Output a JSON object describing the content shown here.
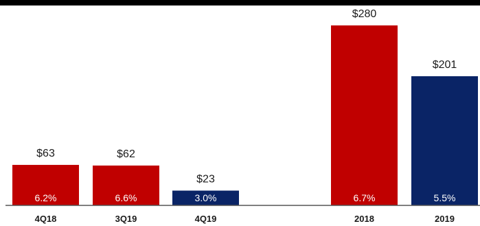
{
  "colors": {
    "header_band": "#000000",
    "red": "#c00000",
    "navy": "#0a2466",
    "baseline": "#555555",
    "text": "#1a1a1a",
    "bar_text": "#ffffff"
  },
  "chart_data": {
    "type": "bar",
    "title": "",
    "xlabel": "",
    "ylabel": "",
    "ylim": [
      0,
      300
    ],
    "grid": false,
    "legend": "none",
    "categories": [
      "4Q18",
      "3Q19",
      "4Q19",
      "2018",
      "2019"
    ],
    "values": [
      63,
      62,
      23,
      280,
      201
    ],
    "value_labels": [
      "$63",
      "$62",
      "$23",
      "$280",
      "$201"
    ],
    "percent_labels": [
      "6.2%",
      "6.6%",
      "3.0%",
      "6.7%",
      "5.5%"
    ],
    "bar_colors": [
      "red",
      "red",
      "navy",
      "red",
      "navy"
    ]
  }
}
